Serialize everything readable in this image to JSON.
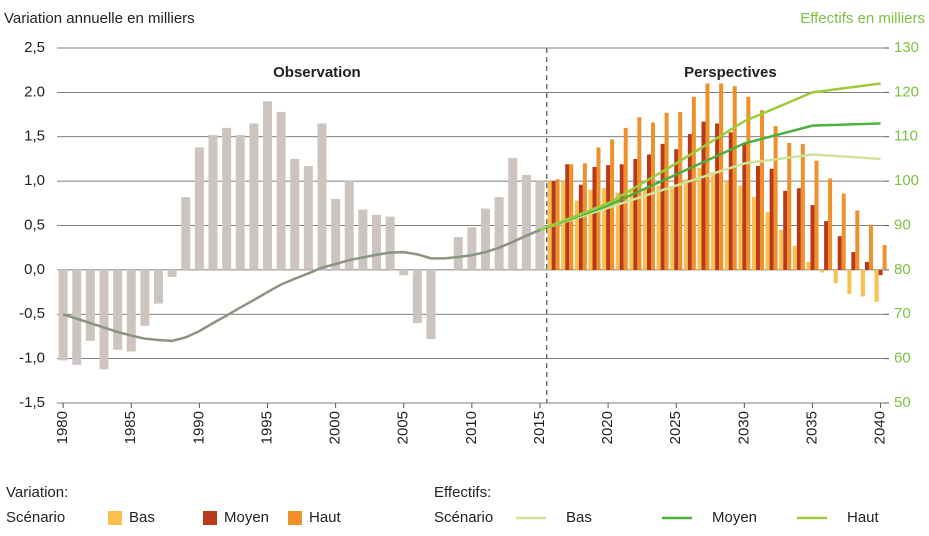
{
  "chart_data": {
    "type": "combo",
    "y_label": "Variation annuelle en milliers",
    "y2_label": "Effectifs en milliers",
    "y2_label_color": "#7cc242",
    "annotations": [
      "Observation",
      "Perspectives"
    ],
    "divider_x": 2015.5,
    "xlim": [
      1979.55,
      2040.25
    ],
    "xticks": [
      1980,
      1985,
      1990,
      1995,
      2000,
      2005,
      2010,
      2015,
      2020,
      2025,
      2030,
      2035,
      2040
    ],
    "ylim": [
      -1.5,
      2.5
    ],
    "yticks": [
      {
        "value": -1.5,
        "label": "-1,5"
      },
      {
        "value": -1,
        "label": "-1,0"
      },
      {
        "value": -0.5,
        "label": "-0,5"
      },
      {
        "value": 0,
        "label": "0,0"
      },
      {
        "value": 0.5,
        "label": "0,5"
      },
      {
        "value": 1,
        "label": "1,0"
      },
      {
        "value": 1.5,
        "label": "1,5"
      },
      {
        "value": 2,
        "label": "2.0"
      },
      {
        "value": 2.5,
        "label": "2,5"
      }
    ],
    "y2lim": [
      50,
      130
    ],
    "y2ticks": [
      50,
      60,
      70,
      80,
      90,
      100,
      110,
      120,
      130
    ],
    "y2tick_color": "#7cc242",
    "grid": true,
    "observed_bars": {
      "color": "#cdc4bf",
      "x": [
        1980,
        1981,
        1982,
        1983,
        1984,
        1985,
        1986,
        1987,
        1988,
        1989,
        1990,
        1991,
        1992,
        1993,
        1994,
        1995,
        1996,
        1997,
        1998,
        1999,
        2000,
        2001,
        2002,
        2003,
        2004,
        2005,
        2006,
        2007,
        2008,
        2009,
        2010,
        2011,
        2012,
        2013,
        2014,
        2015
      ],
      "values": [
        -1.02,
        -1.07,
        -0.8,
        -1.12,
        -0.9,
        -0.92,
        -0.63,
        -0.38,
        -0.08,
        0.82,
        1.38,
        1.52,
        1.6,
        1.52,
        1.65,
        1.9,
        1.78,
        1.25,
        1.17,
        1.65,
        0.8,
        1.01,
        0.68,
        0.62,
        0.6,
        -0.06,
        -0.6,
        -0.78,
        null,
        0.37,
        0.48,
        0.69,
        0.82,
        1.26,
        1.07,
        1.0
      ]
    },
    "scenario_bars": {
      "legend_title": "Variation:",
      "legend_label": "Scénario",
      "x": [
        2016,
        2017,
        2018,
        2019,
        2020,
        2021,
        2022,
        2023,
        2024,
        2025,
        2026,
        2027,
        2028,
        2029,
        2030,
        2031,
        2032,
        2033,
        2034,
        2035,
        2036,
        2037,
        2038,
        2039,
        2040
      ],
      "series": [
        {
          "name": "Bas",
          "color": "#f9c04d",
          "values": [
            1.0,
            1.0,
            0.78,
            0.9,
            0.92,
            0.87,
            0.9,
            0.9,
            0.95,
            0.92,
            1.02,
            1.15,
            1.1,
            1.0,
            0.95,
            0.82,
            0.65,
            0.45,
            0.27,
            0.09,
            -0.03,
            -0.15,
            -0.27,
            -0.3,
            -0.36
          ]
        },
        {
          "name": "Moyen",
          "color": "#b83a1b",
          "values": [
            1.0,
            1.19,
            0.96,
            1.16,
            1.18,
            1.19,
            1.25,
            1.3,
            1.42,
            1.36,
            1.53,
            1.67,
            1.65,
            1.55,
            1.43,
            1.17,
            1.14,
            0.89,
            0.92,
            0.73,
            0.55,
            0.38,
            0.2,
            0.09,
            -0.06
          ]
        },
        {
          "name": "Haut",
          "color": "#f0902a",
          "values": [
            1.02,
            1.19,
            1.2,
            1.38,
            1.47,
            1.6,
            1.72,
            1.66,
            1.77,
            1.78,
            1.95,
            2.1,
            2.1,
            2.07,
            1.95,
            1.8,
            1.62,
            1.43,
            1.42,
            1.23,
            1.03,
            0.86,
            0.67,
            0.51,
            0.28
          ]
        }
      ]
    },
    "observed_line": {
      "axis": "y2",
      "color": "#8a9580",
      "x": [
        1980,
        1981,
        1982,
        1983,
        1984,
        1985,
        1986,
        1987,
        1988,
        1989,
        1990,
        1991,
        1992,
        1993,
        1994,
        1995,
        1996,
        1997,
        1998,
        1999,
        2000,
        2001,
        2002,
        2003,
        2004,
        2005,
        2006,
        2007,
        2008,
        2009,
        2010,
        2011,
        2012,
        2013,
        2014,
        2015
      ],
      "values": [
        70,
        69,
        68,
        67,
        66,
        65.2,
        64.5,
        64.2,
        64,
        64.8,
        66.2,
        68,
        69.7,
        71.5,
        73.2,
        75,
        76.7,
        78,
        79.2,
        80.5,
        81.3,
        82.2,
        82.8,
        83.4,
        83.9,
        84,
        83.5,
        82.6,
        82.6,
        82.9,
        83.3,
        84,
        85,
        86.3,
        87.7,
        89
      ]
    },
    "scenario_lines": {
      "legend_title": "Effectifs:",
      "legend_label": "Scénario",
      "x": [
        2015,
        2020,
        2025,
        2030,
        2035,
        2040
      ],
      "series": [
        {
          "name": "Bas",
          "axis": "y2",
          "color": "#cfe39b",
          "values": [
            89,
            94,
            99,
            104,
            106,
            105
          ]
        },
        {
          "name": "Moyen",
          "axis": "y2",
          "color": "#4caf3e",
          "values": [
            89,
            94.5,
            101.5,
            108.5,
            112.5,
            113
          ]
        },
        {
          "name": "Haut",
          "axis": "y2",
          "color": "#9ccc3a",
          "values": [
            89,
            95,
            104,
            113.5,
            120,
            122
          ]
        }
      ]
    }
  }
}
